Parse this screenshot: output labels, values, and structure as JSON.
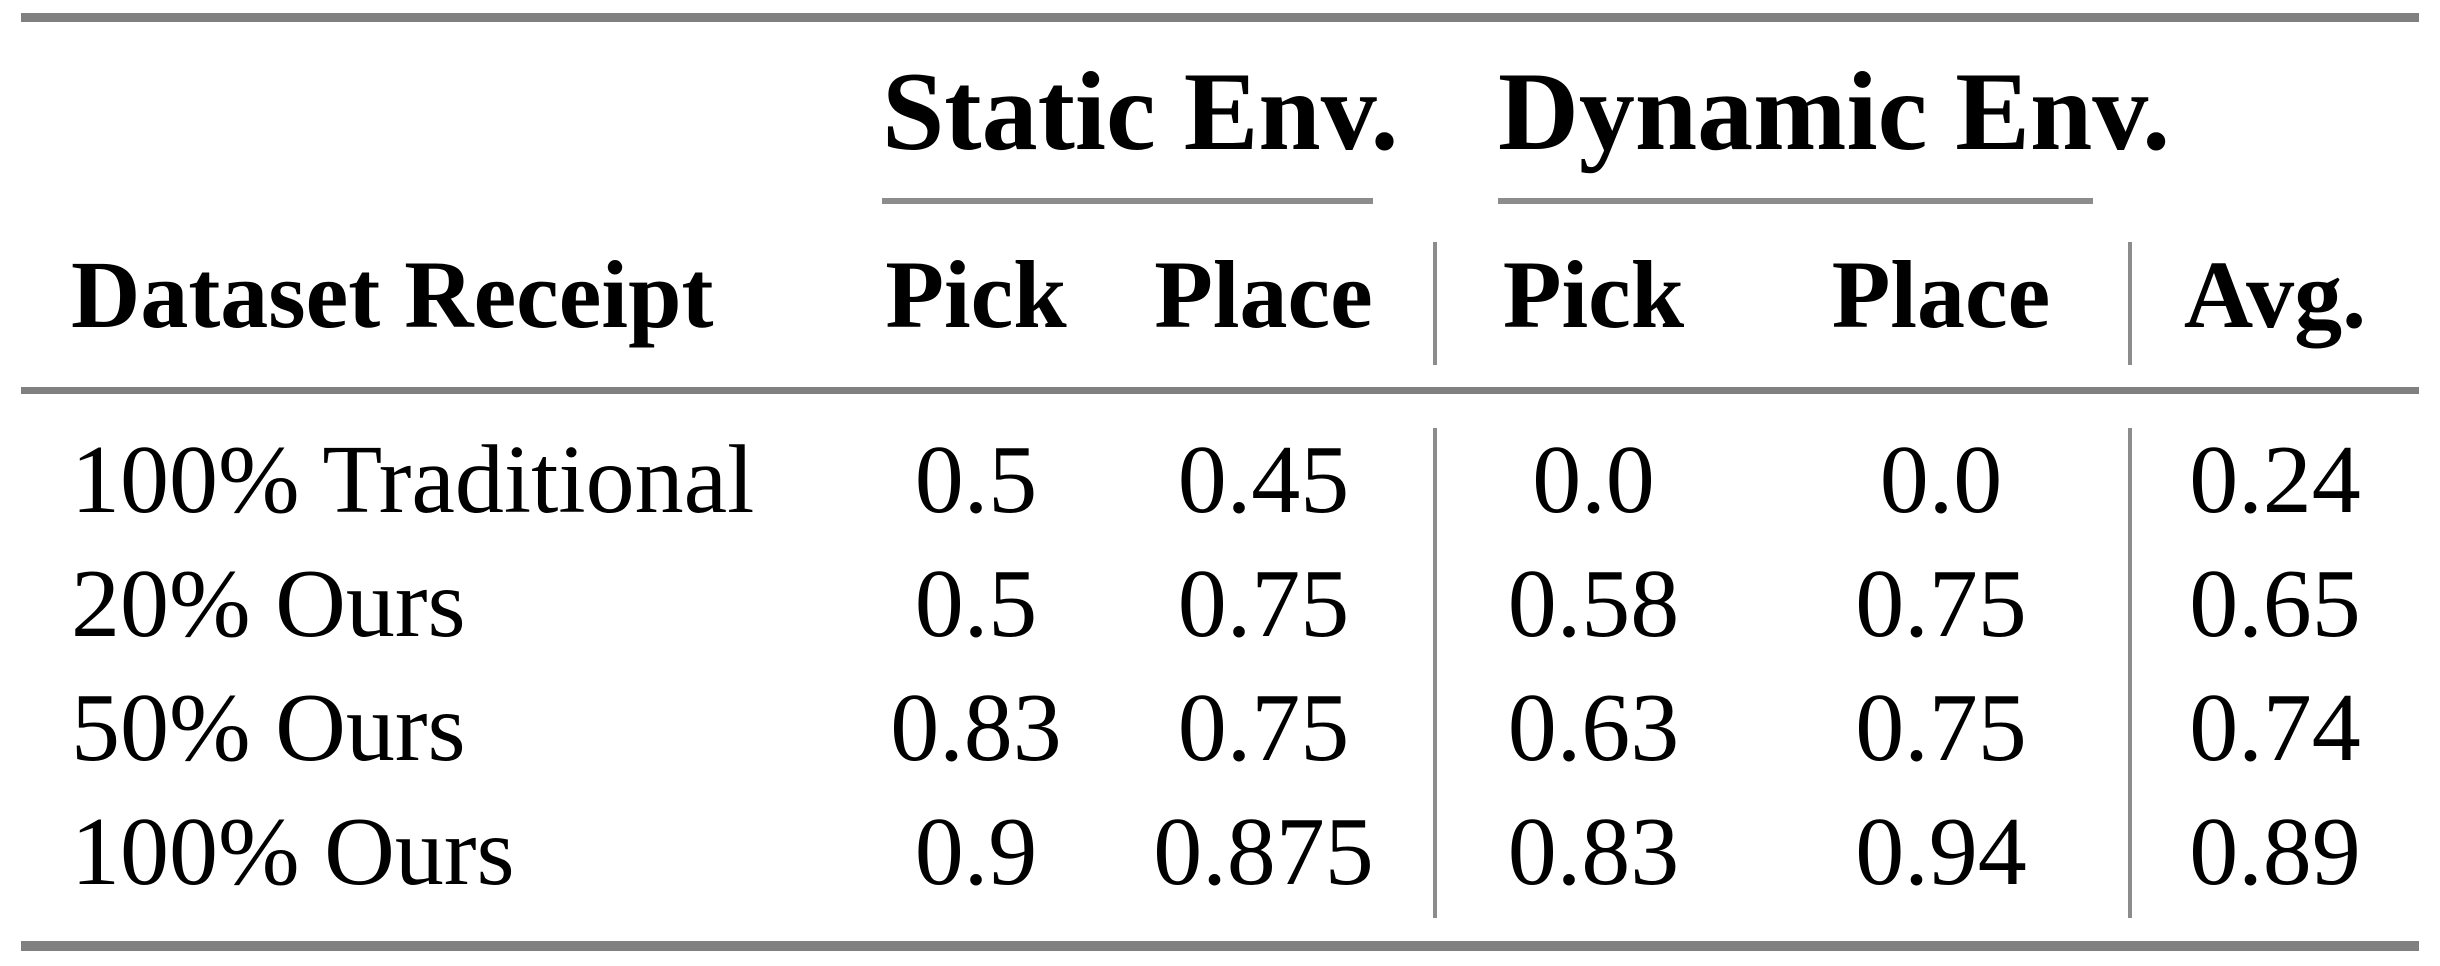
{
  "table": {
    "background": "#ffffff",
    "text_color": "#000000",
    "rule_color": "#808080",
    "groups": [
      {
        "label": "Static Env."
      },
      {
        "label": "Dynamic Env."
      }
    ],
    "headers": {
      "row_label": "Dataset Receipt",
      "static_pick": "Pick",
      "static_place": "Place",
      "dynamic_pick": "Pick",
      "dynamic_place": "Place",
      "avg": "Avg."
    },
    "rows": [
      {
        "label": "100% Traditional",
        "values": [
          "0.5",
          "0.45",
          "0.0",
          "0.0",
          "0.24"
        ]
      },
      {
        "label": "20% Ours",
        "values": [
          "0.5",
          "0.75",
          "0.58",
          "0.75",
          "0.65"
        ]
      },
      {
        "label": "50% Ours",
        "values": [
          "0.83",
          "0.75",
          "0.63",
          "0.75",
          "0.74"
        ]
      },
      {
        "label": "100% Ours",
        "values": [
          "0.9",
          "0.875",
          "0.83",
          "0.94",
          "0.89"
        ]
      }
    ]
  }
}
